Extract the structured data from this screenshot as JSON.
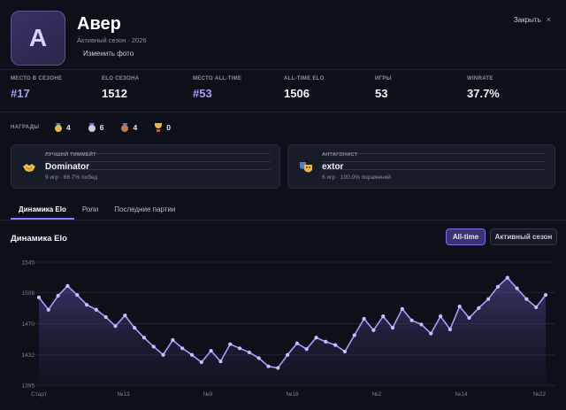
{
  "profile": {
    "avatar_letter": "А",
    "name": "Авер",
    "subtitle": "Активный сезон · 2026",
    "change_photo": "Изменить фото",
    "close_label": "Закрыть",
    "close_symbol": "×"
  },
  "stats": [
    {
      "label": "МЕСТО В СЕЗОНЕ",
      "value": "#17",
      "accent": true
    },
    {
      "label": "ELO СЕЗОНА",
      "value": "1512",
      "accent": false
    },
    {
      "label": "МЕСТО ALL-TIME",
      "value": "#53",
      "accent": true
    },
    {
      "label": "ALL-TIME ELO",
      "value": "1506",
      "accent": false
    },
    {
      "label": "ИГРЫ",
      "value": "53",
      "accent": false
    },
    {
      "label": "WINRATE",
      "value": "37.7%",
      "accent": false
    }
  ],
  "awards": {
    "label": "НАГРАДЫ",
    "items": [
      {
        "icon": "gold-medal-icon",
        "count": "4",
        "color": "#e8b84a"
      },
      {
        "icon": "silver-medal-icon",
        "count": "6",
        "color": "#c9ced8"
      },
      {
        "icon": "bronze-medal-icon",
        "count": "4",
        "color": "#c47a45"
      },
      {
        "icon": "trophy-icon",
        "count": "0",
        "color": "#e8b84a"
      }
    ]
  },
  "cards": {
    "best_teammate": {
      "label": "ЛУЧШИЙ ТИММЕЙТ",
      "name": "Dominator",
      "games": "9 игр",
      "sep": "·",
      "rate": "66.7% побед",
      "icon": "handshake-icon"
    },
    "antagonist": {
      "label": "АНТАГОНИСТ",
      "name": "extor",
      "games": "6 игр",
      "sep": "·",
      "rate": "100.0% поражений",
      "icon": "theater-masks-icon"
    }
  },
  "tabs": [
    {
      "label": "Динамика Elo",
      "active": true
    },
    {
      "label": "Роли",
      "active": false
    },
    {
      "label": "Последние партии",
      "active": false
    }
  ],
  "chart_section": {
    "title": "Динамика Elo",
    "toggle_all": "All-time",
    "toggle_season": "Активный сезон"
  },
  "colors": {
    "accent": "#8d7dfb",
    "line": "#a99dff",
    "background": "#0d1018"
  },
  "chart_data": {
    "type": "area",
    "title": "",
    "xlabel": "",
    "ylabel": "",
    "ylim": [
      1395,
      1545
    ],
    "yticks": [
      1545,
      1508,
      1470,
      1432,
      1395
    ],
    "xtick_labels": [
      "Старт",
      "№13",
      "№9",
      "№18",
      "№2",
      "№14",
      "№22"
    ],
    "grid": true,
    "series": [
      {
        "name": "",
        "values": [
          1502,
          1487,
          1504,
          1516,
          1505,
          1493,
          1487,
          1478,
          1467,
          1480,
          1465,
          1453,
          1442,
          1432,
          1450,
          1440,
          1432,
          1423,
          1437,
          1424,
          1445,
          1440,
          1435,
          1428,
          1418,
          1416,
          1432,
          1446,
          1439,
          1453,
          1448,
          1444,
          1436,
          1456,
          1476,
          1462,
          1479,
          1465,
          1488,
          1474,
          1469,
          1458,
          1479,
          1463,
          1491,
          1477,
          1489,
          1500,
          1515,
          1526,
          1513,
          1500,
          1490,
          1505
        ]
      }
    ]
  }
}
